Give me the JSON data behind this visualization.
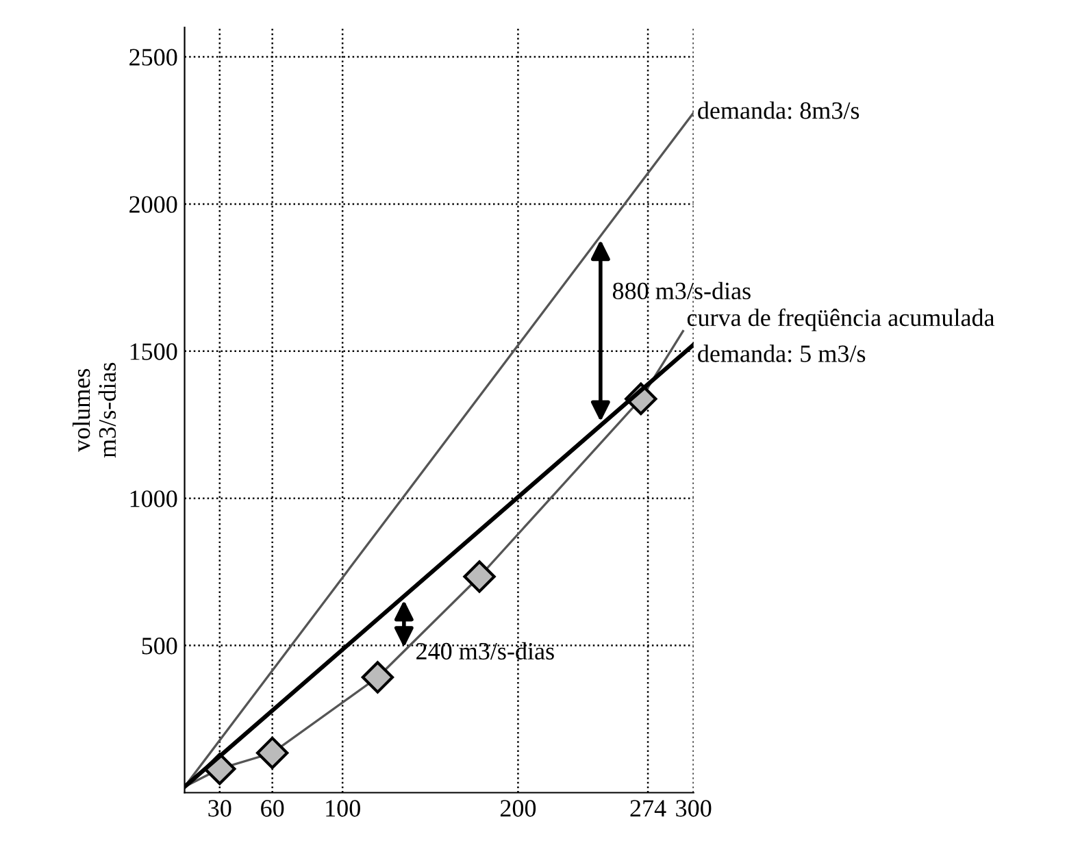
{
  "chart_data": {
    "type": "line",
    "ylabel": "volumes\nm3/s-dias",
    "xlim": [
      10,
      300
    ],
    "ylim": [
      0,
      2600
    ],
    "xticks": [
      30,
      60,
      100,
      200,
      274,
      300
    ],
    "yticks": [
      500,
      1000,
      1500,
      2000,
      2500
    ],
    "grid": true,
    "legend": false,
    "series": [
      {
        "name": "demanda: 8m3/s",
        "color": "#555555",
        "x": [
          10,
          300
        ],
        "values": [
          20,
          2310
        ],
        "marker": "none"
      },
      {
        "name": "curva de freqüência acumulada",
        "color": "#555555",
        "x": [
          10,
          30,
          60,
          120,
          178,
          270,
          294
        ],
        "values": [
          20,
          81,
          135,
          392,
          734,
          1338,
          1568
        ],
        "marker": "diamond"
      },
      {
        "name": "demanda: 5 m3/s",
        "color": "#000000",
        "x": [
          10,
          300
        ],
        "values": [
          20,
          1522
        ],
        "marker": "none"
      }
    ],
    "annotations": [
      {
        "text": "880 m3/s-dias",
        "x": 247,
        "y": 1891
      },
      {
        "text": "240 m3/s-dias",
        "x": 135,
        "y": 667
      }
    ]
  }
}
